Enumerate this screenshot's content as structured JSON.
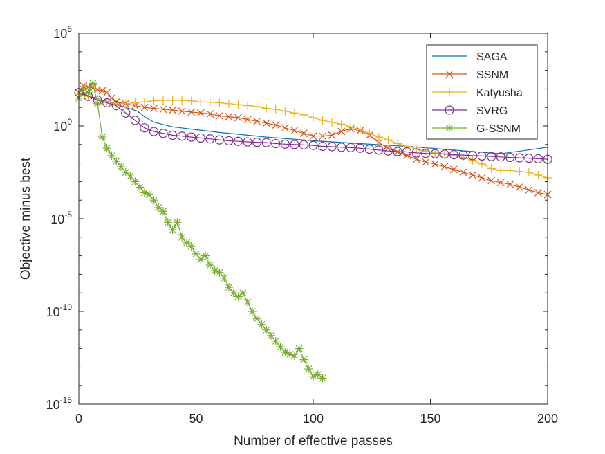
{
  "chart_data": {
    "type": "line",
    "title": "",
    "xlabel": "Number of effective passes",
    "ylabel": "Objective minus best",
    "xlim": [
      0,
      200
    ],
    "ylim_log10": [
      -15,
      5
    ],
    "yscale": "log",
    "x_ticks": [
      0,
      50,
      100,
      150,
      200
    ],
    "x_tick_labels": [
      "0",
      "50",
      "100",
      "150",
      "200"
    ],
    "y_ticks_log10": [
      5,
      0,
      -5,
      -10,
      -15
    ],
    "y_tick_base": "10",
    "y_tick_exponents": [
      "5",
      "0",
      "-5",
      "-10",
      "-15"
    ],
    "grid": false,
    "legend_position": "top-right",
    "series": [
      {
        "name": "SAGA",
        "color": "#0072BD",
        "marker": "none",
        "x": [
          0,
          10,
          20,
          25,
          28,
          32,
          40,
          50,
          60,
          80,
          100,
          120,
          140,
          160,
          180,
          200
        ],
        "log10_y": [
          1.8,
          1.4,
          1.0,
          0.8,
          0.5,
          0.2,
          -0.05,
          -0.2,
          -0.35,
          -0.6,
          -0.8,
          -0.95,
          -1.1,
          -1.3,
          -1.5,
          -1.15
        ]
      },
      {
        "name": "SSNM",
        "color": "#D95319",
        "marker": "x",
        "x": [
          0,
          2,
          4,
          6,
          8,
          10,
          12,
          14,
          16,
          20,
          24,
          28,
          32,
          36,
          40,
          44,
          48,
          52,
          56,
          60,
          64,
          68,
          72,
          76,
          80,
          84,
          88,
          92,
          96,
          100,
          104,
          108,
          112,
          116,
          120,
          124,
          128,
          132,
          136,
          140,
          144,
          148,
          152,
          156,
          160,
          164,
          168,
          172,
          176,
          180,
          184,
          188,
          192,
          196,
          200
        ],
        "log10_y": [
          1.8,
          2.15,
          2.1,
          2.05,
          1.95,
          1.9,
          1.8,
          1.5,
          1.3,
          1.2,
          1.1,
          1.0,
          0.95,
          0.9,
          0.85,
          0.8,
          0.75,
          0.7,
          0.65,
          0.55,
          0.5,
          0.45,
          0.35,
          0.25,
          0.15,
          0.05,
          -0.1,
          -0.25,
          -0.4,
          -0.55,
          -0.55,
          -0.5,
          -0.3,
          -0.15,
          -0.25,
          -0.5,
          -0.9,
          -1.2,
          -1.4,
          -1.6,
          -1.8,
          -1.95,
          -2.05,
          -2.2,
          -2.35,
          -2.5,
          -2.65,
          -2.8,
          -2.95,
          -3.05,
          -3.15,
          -3.3,
          -3.45,
          -3.6,
          -3.7
        ]
      },
      {
        "name": "Katyusha",
        "color": "#EDB120",
        "marker": "+",
        "x": [
          0,
          4,
          8,
          12,
          16,
          20,
          24,
          28,
          32,
          36,
          40,
          44,
          48,
          52,
          56,
          60,
          64,
          68,
          72,
          76,
          80,
          84,
          88,
          92,
          96,
          100,
          104,
          108,
          112,
          116,
          120,
          124,
          128,
          132,
          136,
          140,
          144,
          148,
          152,
          156,
          160,
          164,
          168,
          172,
          176,
          180,
          184,
          188,
          192,
          196,
          200
        ],
        "log10_y": [
          1.7,
          1.6,
          1.45,
          1.3,
          1.2,
          1.2,
          1.25,
          1.3,
          1.35,
          1.38,
          1.38,
          1.38,
          1.35,
          1.3,
          1.28,
          1.25,
          1.2,
          1.15,
          1.1,
          1.05,
          0.95,
          0.9,
          0.8,
          0.7,
          0.6,
          0.45,
          0.3,
          0.2,
          0.1,
          -0.05,
          -0.2,
          -0.4,
          -0.6,
          -0.75,
          -0.95,
          -1.1,
          -1.25,
          -1.35,
          -1.45,
          -1.5,
          -1.6,
          -1.7,
          -1.85,
          -2.05,
          -2.3,
          -2.4,
          -2.4,
          -2.45,
          -2.5,
          -2.65,
          -2.8
        ]
      },
      {
        "name": "SVRG",
        "color": "#7E2F8E",
        "marker": "o",
        "x": [
          0,
          4,
          8,
          12,
          16,
          20,
          24,
          28,
          32,
          36,
          40,
          44,
          48,
          52,
          56,
          60,
          64,
          68,
          72,
          76,
          80,
          84,
          88,
          92,
          96,
          100,
          104,
          108,
          112,
          116,
          120,
          124,
          128,
          132,
          136,
          140,
          144,
          148,
          152,
          156,
          160,
          164,
          168,
          172,
          176,
          180,
          184,
          188,
          192,
          196,
          200
        ],
        "log10_y": [
          1.8,
          1.6,
          1.4,
          1.25,
          1.1,
          0.7,
          0.3,
          -0.1,
          -0.3,
          -0.4,
          -0.5,
          -0.55,
          -0.6,
          -0.65,
          -0.7,
          -0.75,
          -0.8,
          -0.83,
          -0.86,
          -0.88,
          -0.9,
          -0.95,
          -0.98,
          -1.0,
          -1.02,
          -1.05,
          -1.1,
          -1.12,
          -1.15,
          -1.17,
          -1.2,
          -1.25,
          -1.3,
          -1.35,
          -1.38,
          -1.4,
          -1.45,
          -1.48,
          -1.5,
          -1.52,
          -1.55,
          -1.57,
          -1.6,
          -1.62,
          -1.65,
          -1.67,
          -1.7,
          -1.72,
          -1.74,
          -1.77,
          -1.8
        ]
      },
      {
        "name": "G-SSNM",
        "color": "#77AC30",
        "marker": "*",
        "x": [
          0,
          2,
          4,
          6,
          8,
          10,
          12,
          14,
          16,
          18,
          20,
          22,
          24,
          26,
          28,
          30,
          32,
          34,
          36,
          38,
          40,
          42,
          44,
          46,
          48,
          50,
          52,
          54,
          56,
          58,
          60,
          62,
          64,
          66,
          68,
          70,
          72,
          74,
          76,
          78,
          80,
          82,
          84,
          86,
          88,
          90,
          92,
          94,
          96,
          98,
          100,
          102,
          104
        ],
        "log10_y": [
          1.5,
          2.0,
          1.8,
          2.3,
          1.2,
          -0.6,
          -1.2,
          -1.6,
          -1.9,
          -2.2,
          -2.5,
          -2.7,
          -3.0,
          -3.3,
          -3.6,
          -3.7,
          -4.0,
          -4.4,
          -4.6,
          -5.2,
          -5.6,
          -5.2,
          -6.0,
          -6.3,
          -6.5,
          -6.9,
          -7.2,
          -7.0,
          -7.5,
          -7.8,
          -7.9,
          -8.2,
          -8.7,
          -9.0,
          -9.2,
          -9.0,
          -9.5,
          -10.0,
          -10.4,
          -10.7,
          -11.0,
          -11.3,
          -11.6,
          -11.9,
          -12.2,
          -12.3,
          -12.4,
          -12.0,
          -12.6,
          -13.1,
          -13.5,
          -13.4,
          -13.6
        ]
      }
    ]
  }
}
